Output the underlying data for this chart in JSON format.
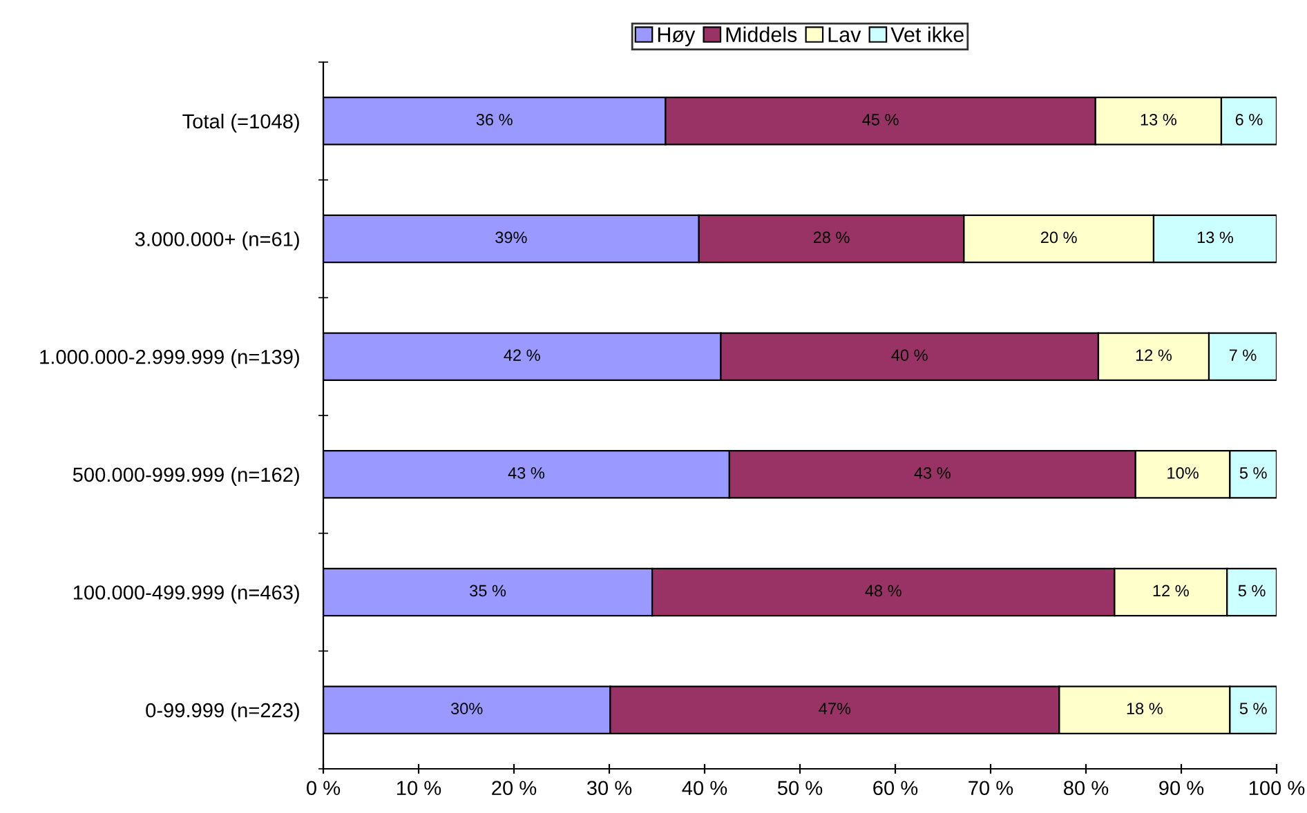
{
  "chart_data": {
    "type": "bar",
    "orientation": "horizontal",
    "stacked": true,
    "categories": [
      "Total (=1048)",
      "3.000.000+ (n=61)",
      "1.000.000-2.999.999 (n=139)",
      "500.000-999.999 (n=162)",
      "100.000-499.999 (n=463)",
      "0-99.999 (n=223)"
    ],
    "series": [
      {
        "name": "Høy",
        "color": "#9999ff",
        "values": [
          35.9,
          39.4,
          41.7,
          42.6,
          34.5,
          30.1
        ],
        "value_labels": [
          "36 %",
          "39%",
          "42 %",
          "43 %",
          "35 %",
          "30%"
        ]
      },
      {
        "name": "Middels",
        "color": "#993366",
        "values": [
          45.1,
          27.8,
          39.6,
          42.6,
          48.5,
          47.1
        ],
        "value_labels": [
          "45 %",
          "28 %",
          "40 %",
          "43 %",
          "48 %",
          "47%"
        ]
      },
      {
        "name": "Lav",
        "color": "#ffffcc",
        "values": [
          13.2,
          19.9,
          11.6,
          9.9,
          11.8,
          17.9
        ],
        "value_labels": [
          "13 %",
          "20 %",
          "12 %",
          "10%",
          "12 %",
          "18 %"
        ]
      },
      {
        "name": "Vet ikke",
        "color": "#ccffff",
        "values": [
          5.8,
          12.9,
          7.1,
          4.9,
          5.2,
          4.9
        ],
        "value_labels": [
          "6 %",
          "13 %",
          "7 %",
          "5 %",
          "5 %",
          "5 %"
        ]
      }
    ],
    "xlim": [
      0,
      100
    ],
    "xticks": [
      {
        "value": 0,
        "label": "0 %"
      },
      {
        "value": 10,
        "label": "10 %"
      },
      {
        "value": 20,
        "label": "20 %"
      },
      {
        "value": 30,
        "label": "30 %"
      },
      {
        "value": 40,
        "label": "40 %"
      },
      {
        "value": 50,
        "label": "50 %"
      },
      {
        "value": 60,
        "label": "60 %"
      },
      {
        "value": 70,
        "label": "70 %"
      },
      {
        "value": 80,
        "label": "80 %"
      },
      {
        "value": 90,
        "label": "90 %"
      },
      {
        "value": 100,
        "label": "100 %"
      }
    ],
    "grid": false,
    "legend": "top"
  }
}
